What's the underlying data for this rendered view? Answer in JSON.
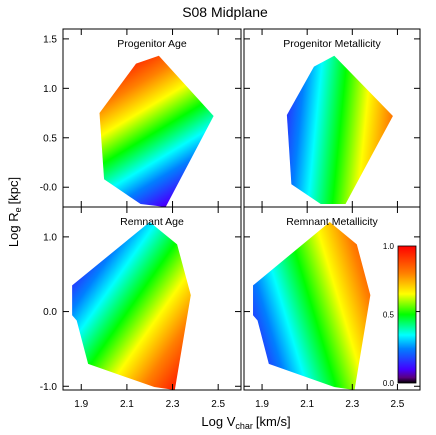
{
  "chart_data": {
    "type": "heatmap",
    "title": "S08 Midplane",
    "xlabel": "Log V",
    "xlabel_sub": "char",
    "xlabel_unit": "[km/s]",
    "ylabel": "Log R",
    "ylabel_sub": "e",
    "ylabel_unit": "[kpc]",
    "xlim": [
      1.82,
      2.6
    ],
    "x_ticks": [
      "1.9",
      "2.1",
      "2.3",
      "2.5"
    ],
    "x_tick_values": [
      1.9,
      2.1,
      2.3,
      2.5
    ],
    "top_row_ylim": [
      -0.2,
      1.6
    ],
    "top_row_y_ticks": [
      "-0.0",
      "0.5",
      "1.0",
      "1.5"
    ],
    "top_row_y_tick_values": [
      0.0,
      0.5,
      1.0,
      1.5
    ],
    "bottom_row_ylim": [
      -1.05,
      1.4
    ],
    "bottom_row_y_ticks": [
      "-1.0",
      "0.0",
      "1.0"
    ],
    "bottom_row_y_tick_values": [
      -1.0,
      0.0,
      1.0
    ],
    "colorbar": {
      "min": 0.0,
      "max": 1.0,
      "ticks": [
        "0.0",
        "0.5",
        "1.0"
      ],
      "tick_values": [
        0.0,
        0.5,
        1.0
      ],
      "colormap": "rainbow"
    },
    "panels": [
      {
        "title": "Progenitor Age",
        "row": 0,
        "col": 0,
        "hull": [
          [
            1.98,
            0.75
          ],
          [
            2.14,
            1.25
          ],
          [
            2.24,
            1.33
          ],
          [
            2.48,
            0.72
          ],
          [
            2.27,
            -0.2
          ],
          [
            2.16,
            -0.17
          ],
          [
            2.0,
            0.08
          ]
        ],
        "field": {
          "type": "linear",
          "direction": [
            -0.6,
            1.0
          ],
          "low": 0.0,
          "high": 1.0
        }
      },
      {
        "title": "Progenitor Metallicity",
        "row": 0,
        "col": 1,
        "hull": [
          [
            2.01,
            0.73
          ],
          [
            2.13,
            1.22
          ],
          [
            2.22,
            1.33
          ],
          [
            2.48,
            0.72
          ],
          [
            2.27,
            -0.17
          ],
          [
            2.16,
            -0.17
          ],
          [
            2.03,
            0.03
          ]
        ],
        "field": {
          "type": "linear",
          "direction": [
            1.0,
            -0.1
          ],
          "low": 0.0,
          "high": 1.0
        }
      },
      {
        "title": "Remnant Age",
        "row": 1,
        "col": 0,
        "hull": [
          [
            1.86,
            -0.05
          ],
          [
            1.86,
            0.35
          ],
          [
            2.2,
            1.2
          ],
          [
            2.32,
            0.9
          ],
          [
            2.38,
            0.22
          ],
          [
            2.31,
            -1.05
          ],
          [
            2.22,
            -1.01
          ],
          [
            1.93,
            -0.7
          ],
          [
            1.88,
            -0.12
          ]
        ],
        "field": {
          "type": "linear",
          "direction": [
            1.0,
            -0.7
          ],
          "low": 0.0,
          "high": 1.0
        }
      },
      {
        "title": "Remnant Metallicity",
        "row": 1,
        "col": 1,
        "hull": [
          [
            1.86,
            -0.05
          ],
          [
            1.86,
            0.35
          ],
          [
            2.2,
            1.2
          ],
          [
            2.32,
            0.9
          ],
          [
            2.38,
            0.22
          ],
          [
            2.31,
            -1.05
          ],
          [
            2.22,
            -1.01
          ],
          [
            1.93,
            -0.7
          ],
          [
            1.88,
            -0.12
          ]
        ],
        "field": {
          "type": "linear",
          "direction": [
            1.0,
            0.3
          ],
          "low": 0.0,
          "high": 1.0
        }
      }
    ]
  }
}
